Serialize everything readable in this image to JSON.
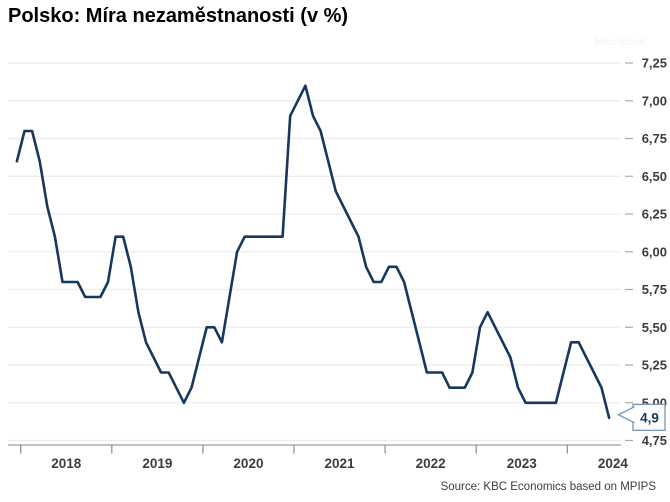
{
  "title": "Polsko: Míra nezaměstnanosti (v %)",
  "watermark": "Macrobond",
  "source": "Source: KBC Economics based on MPIPS",
  "callout": {
    "label": "4,9"
  },
  "colors": {
    "line": "#17375e",
    "gridline": "#ececec",
    "axis": "#ababab",
    "x_tick": "#8a8a8a",
    "label_text": "#3d3d3d",
    "callout_border": "#7f9cbb",
    "callout_text": "#17375e"
  },
  "chart_data": {
    "type": "line",
    "title": "Polsko: Míra nezaměstnanosti (v %)",
    "unit": "%",
    "frequency": "monthly",
    "x_start": "2017-12",
    "x_end": "2024-06",
    "values": [
      6.6,
      6.8,
      6.8,
      6.6,
      6.3,
      6.1,
      5.8,
      5.8,
      5.8,
      5.7,
      5.7,
      5.7,
      5.8,
      6.1,
      6.1,
      5.9,
      5.6,
      5.4,
      5.3,
      5.2,
      5.2,
      5.1,
      5.0,
      5.1,
      5.3,
      5.5,
      5.5,
      5.4,
      5.7,
      6.0,
      6.1,
      6.1,
      6.1,
      6.1,
      6.1,
      6.1,
      6.9,
      7.0,
      7.1,
      6.9,
      6.8,
      6.6,
      6.4,
      6.3,
      6.2,
      6.1,
      5.9,
      5.8,
      5.8,
      5.9,
      5.9,
      5.8,
      5.6,
      5.4,
      5.2,
      5.2,
      5.2,
      5.1,
      5.1,
      5.1,
      5.2,
      5.5,
      5.6,
      5.5,
      5.4,
      5.3,
      5.1,
      5.0,
      5.0,
      5.0,
      5.0,
      5.0,
      5.2,
      5.4,
      5.4,
      5.3,
      5.2,
      5.1,
      4.9
    ],
    "y_ticks": [
      "7,25",
      "7,00",
      "6,75",
      "6,50",
      "6,25",
      "6,00",
      "5,75",
      "5,50",
      "5,25",
      "5,00",
      "4,75"
    ],
    "y_tick_values": [
      7.25,
      7.0,
      6.75,
      6.5,
      6.25,
      6.0,
      5.75,
      5.5,
      5.25,
      5.0,
      4.75
    ],
    "x_tick_years": [
      "2018",
      "2019",
      "2020",
      "2021",
      "2022",
      "2023",
      "2024"
    ],
    "ylim": [
      4.75,
      7.25
    ],
    "grid": "horizontal",
    "legend": "none",
    "y_axis_side": "right",
    "last_value_label": "4,9"
  }
}
